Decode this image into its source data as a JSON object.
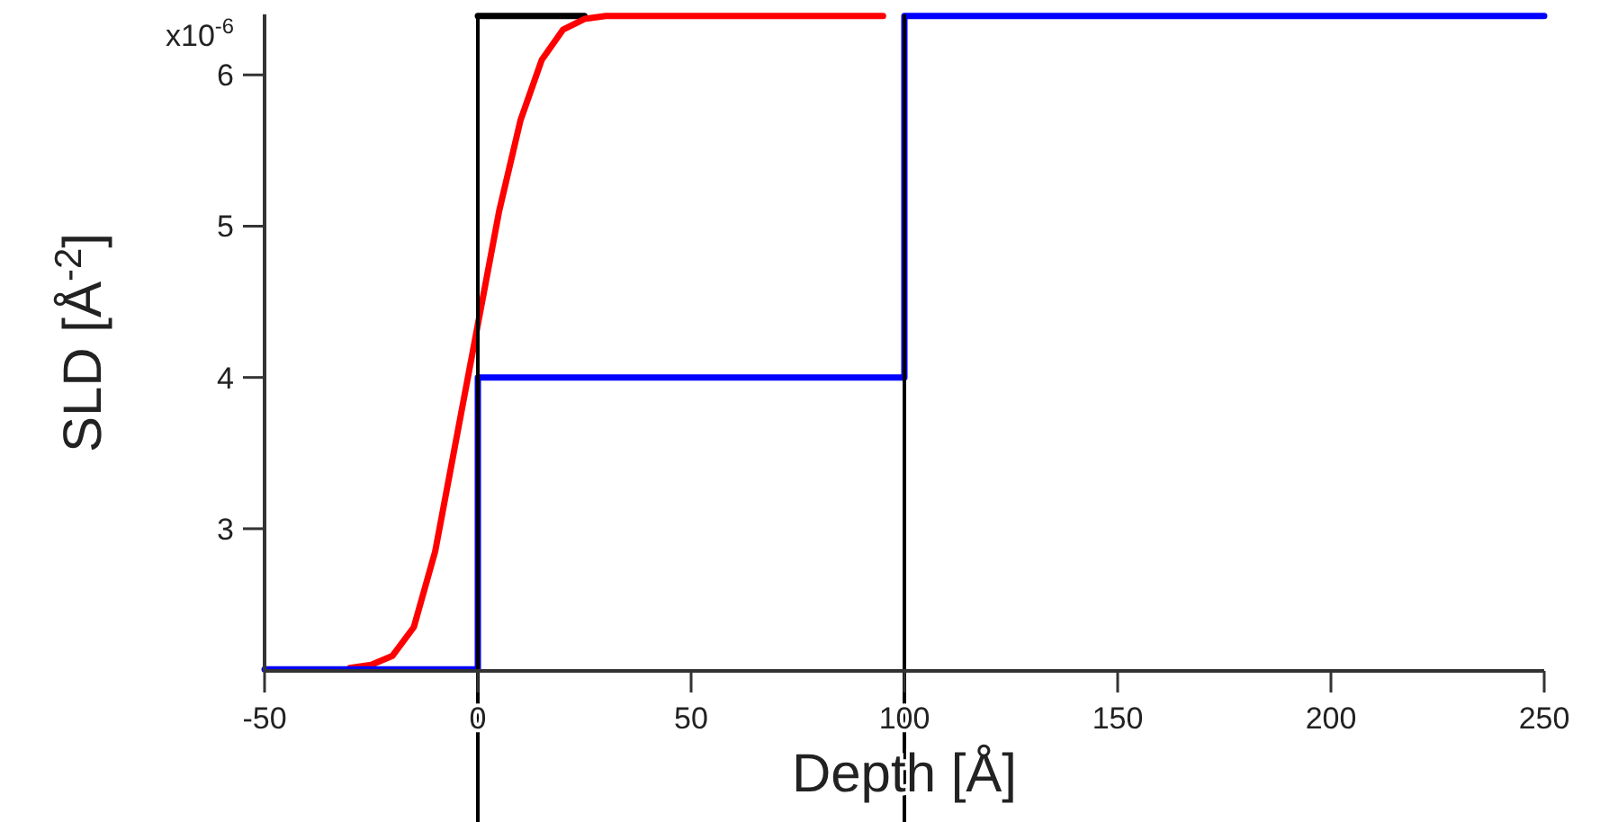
{
  "chart_data": {
    "type": "line",
    "xlabel": "Depth [Å]",
    "ylabel": "SLD [Å$^{-2}$]",
    "xlim": [
      -50,
      250
    ],
    "ylim": [
      2.06,
      6.4
    ],
    "xticks": [
      -50,
      0,
      50,
      100,
      150,
      200,
      250
    ],
    "yticks": [
      3,
      4,
      5,
      6
    ],
    "annotations": [
      "x10$^{-6}$"
    ],
    "grid": false,
    "line_style": "solid",
    "marker": "none",
    "ref_lines": [
      {
        "axis": "x",
        "value": 0,
        "color": "#000000"
      },
      {
        "axis": "x",
        "value": 100,
        "color": "#000000"
      }
    ],
    "series": [
      {
        "color": "#000000",
        "x": [
          0,
          25
        ],
        "values": [
          6.39,
          6.39
        ]
      },
      {
        "color": "#ff0000",
        "x": [
          -30,
          -25,
          -20,
          -15,
          -10,
          -5,
          0,
          5,
          10,
          15,
          20,
          25,
          30,
          40,
          95
        ],
        "values": [
          2.08,
          2.1,
          2.16,
          2.35,
          2.85,
          3.6,
          4.35,
          5.1,
          5.7,
          6.1,
          6.3,
          6.37,
          6.39,
          6.39,
          6.39
        ]
      },
      {
        "type": "step",
        "color": "#0000ff",
        "x": [
          -50,
          0,
          100,
          250
        ],
        "values": [
          2.07,
          4,
          6.39,
          6.39
        ]
      }
    ]
  }
}
